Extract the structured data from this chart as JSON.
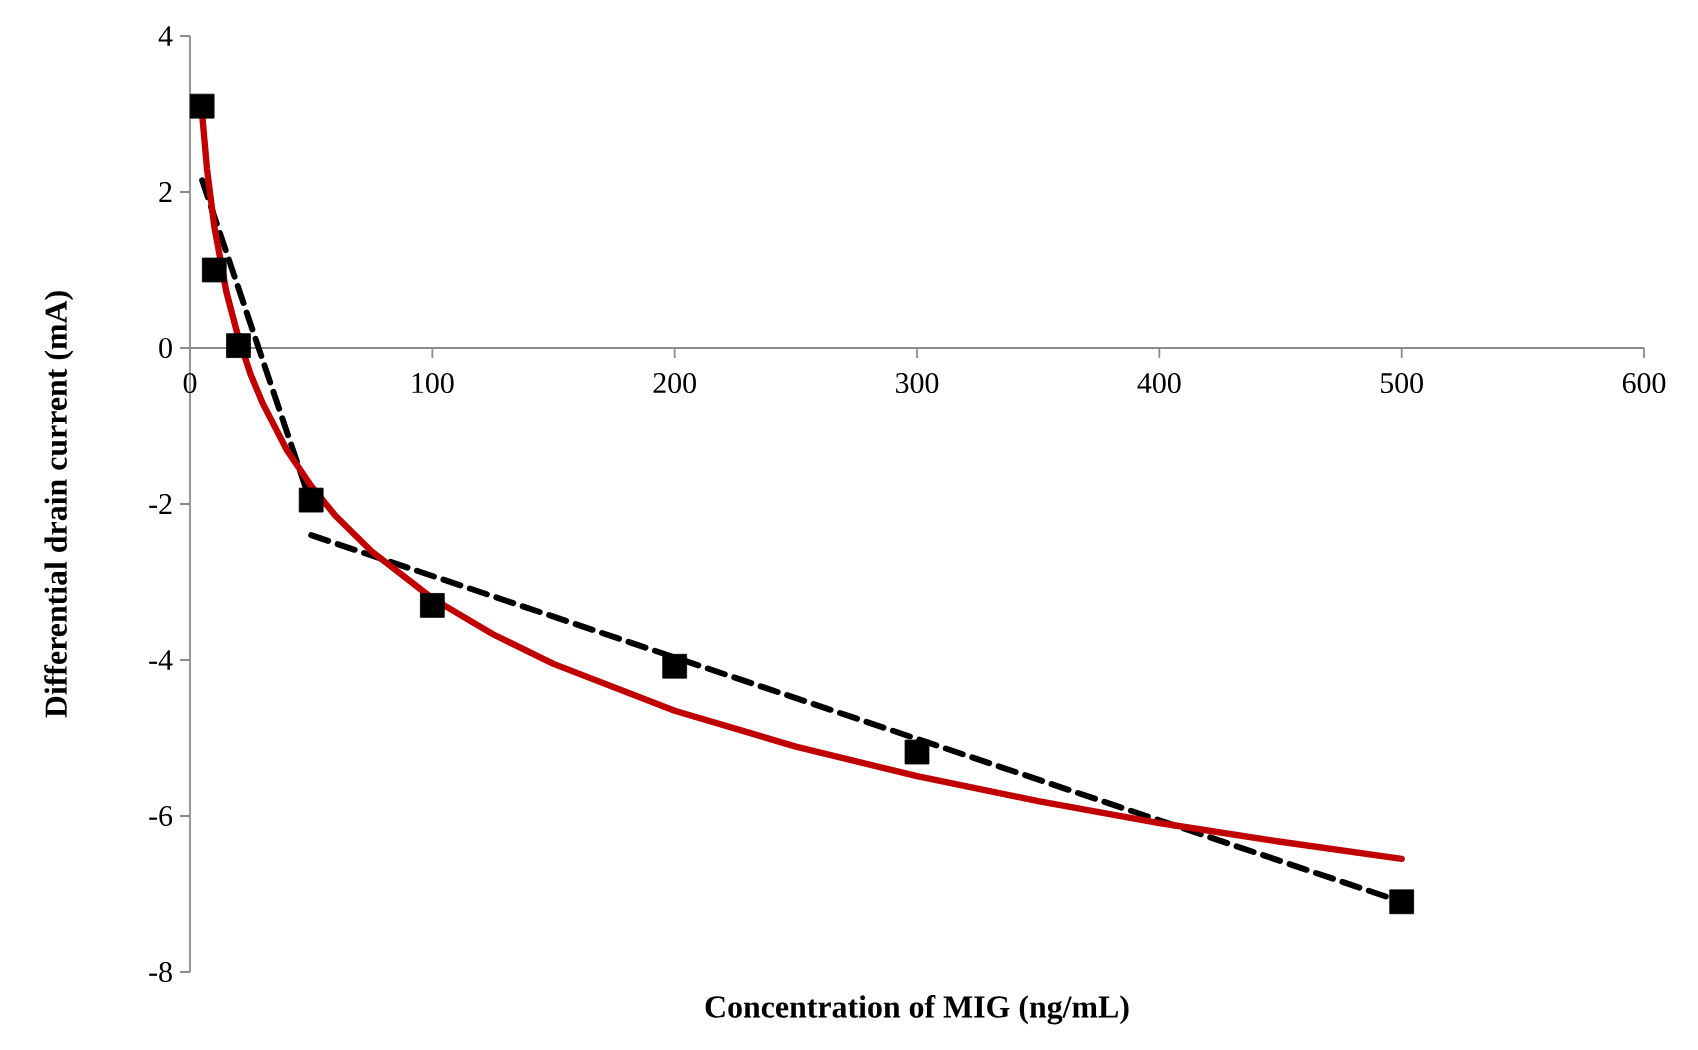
{
  "chart_data": {
    "type": "scatter",
    "xlabel": "Concentration of MIG (ng/mL)",
    "ylabel": "Differential drain current (mA)",
    "xlim": [
      0,
      600
    ],
    "ylim": [
      -8,
      4
    ],
    "xticks": [
      0,
      100,
      200,
      300,
      400,
      500,
      600
    ],
    "yticks": [
      -8,
      -6,
      -4,
      -2,
      0,
      2,
      4
    ],
    "grid": false,
    "legend": false,
    "series": [
      {
        "type": "line",
        "color": "#000000",
        "line_style": "dashed",
        "marker": "none",
        "x": [
          5,
          50
        ],
        "values": [
          2.15,
          -2.0
        ]
      },
      {
        "type": "line",
        "color": "#000000",
        "line_style": "dashed",
        "marker": "none",
        "x": [
          50,
          500
        ],
        "values": [
          -2.4,
          -7.1
        ]
      },
      {
        "type": "line",
        "color": "#c00000",
        "line_style": "solid",
        "marker": "none",
        "x": [
          5,
          7,
          10,
          15,
          20,
          25,
          30,
          40,
          50,
          60,
          75,
          100,
          125,
          150,
          200,
          250,
          300,
          350,
          400,
          450,
          500
        ],
        "values": [
          3.0,
          2.3,
          1.56,
          0.72,
          0.13,
          -0.34,
          -0.71,
          -1.31,
          -1.77,
          -2.15,
          -2.61,
          -3.21,
          -3.67,
          -4.05,
          -4.65,
          -5.11,
          -5.49,
          -5.81,
          -6.09,
          -6.33,
          -6.55
        ]
      },
      {
        "color": "#000000",
        "marker": "square",
        "x": [
          5,
          10,
          20,
          50,
          100,
          200,
          300,
          500
        ],
        "values": [
          3.1,
          1.0,
          0.03,
          -1.95,
          -3.3,
          -4.08,
          -5.18,
          -7.1
        ]
      }
    ]
  }
}
